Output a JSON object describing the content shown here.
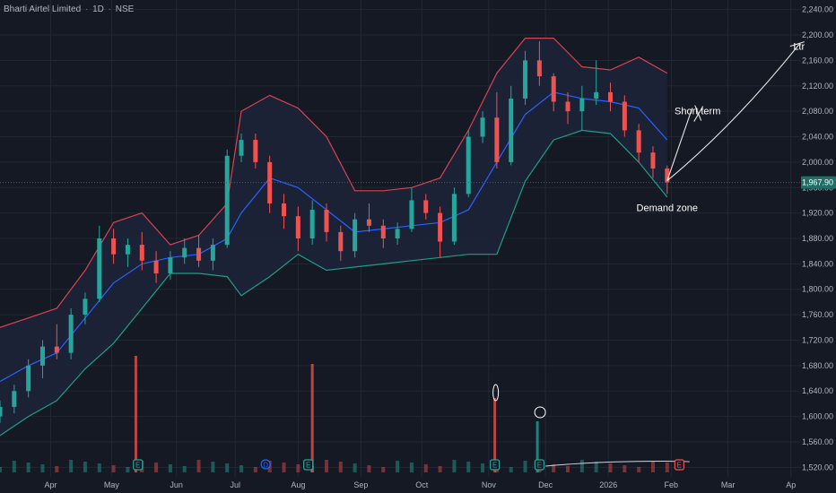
{
  "header": {
    "symbol_name": "Bharti Airtel Limited",
    "interval": "1D",
    "exchange": "NSE"
  },
  "price_tag": {
    "value": 1967.9,
    "label": "1,967.90",
    "color": "#1e6f66"
  },
  "colors": {
    "background": "#151924",
    "grid": "#222733",
    "up": "#26a69a",
    "down": "#ef5350",
    "bb_upper": "#d64450",
    "bb_lower": "#1f9e84",
    "bb_basis": "#2962ff",
    "bb_fill": "#1c2438"
  },
  "chart_data": {
    "type": "candlestick",
    "title": "Bharti Airtel Limited · 1D · NSE",
    "ylim": [
      1505,
      2255
    ],
    "yticks": [
      1520,
      1560,
      1600,
      1640,
      1680,
      1720,
      1760,
      1800,
      1840,
      1880,
      1920,
      1960,
      2000,
      2040,
      2080,
      2120,
      2160,
      2200,
      2240
    ],
    "ytick_labels": [
      "1,520.00",
      "1,560.00",
      "1,600.00",
      "1,640.00",
      "1,680.00",
      "1,720.00",
      "1,760.00",
      "1,800.00",
      "1,840.00",
      "1,880.00",
      "1,920.00",
      "1,960.00",
      "2,000.00",
      "2,040.00",
      "2,080.00",
      "2,120.00",
      "2,160.00",
      "2,200.00",
      "2,240.00"
    ],
    "xaxis": {
      "start": "2025-03-07",
      "end": "2026-04-06",
      "ticks": [
        {
          "date": "2025-04-01",
          "label": "Apr"
        },
        {
          "date": "2025-05-01",
          "label": "May"
        },
        {
          "date": "2025-06-02",
          "label": "Jun"
        },
        {
          "date": "2025-07-01",
          "label": "Jul"
        },
        {
          "date": "2025-08-01",
          "label": "Aug"
        },
        {
          "date": "2025-09-01",
          "label": "Sep"
        },
        {
          "date": "2025-10-01",
          "label": "Oct"
        },
        {
          "date": "2025-11-03",
          "label": "Nov"
        },
        {
          "date": "2025-12-01",
          "label": "Dec"
        },
        {
          "date": "2026-01-01",
          "label": "2026"
        },
        {
          "date": "2026-02-01",
          "label": "Feb"
        },
        {
          "date": "2026-03-01",
          "label": "Mar"
        },
        {
          "date": "2026-04-01",
          "label": "Ap"
        }
      ]
    },
    "series": [
      {
        "name": "Price",
        "kind": "ohlc",
        "points": [
          {
            "date": "2025-03-07",
            "o": 1600,
            "h": 1625,
            "l": 1590,
            "c": 1615
          },
          {
            "date": "2025-03-14",
            "o": 1615,
            "h": 1650,
            "l": 1605,
            "c": 1640
          },
          {
            "date": "2025-03-21",
            "o": 1640,
            "h": 1690,
            "l": 1630,
            "c": 1680
          },
          {
            "date": "2025-03-28",
            "o": 1680,
            "h": 1720,
            "l": 1660,
            "c": 1710
          },
          {
            "date": "2025-04-04",
            "o": 1710,
            "h": 1745,
            "l": 1690,
            "c": 1700
          },
          {
            "date": "2025-04-11",
            "o": 1700,
            "h": 1770,
            "l": 1690,
            "c": 1760
          },
          {
            "date": "2025-04-18",
            "o": 1760,
            "h": 1795,
            "l": 1745,
            "c": 1785
          },
          {
            "date": "2025-04-25",
            "o": 1785,
            "h": 1900,
            "l": 1780,
            "c": 1880
          },
          {
            "date": "2025-05-02",
            "o": 1880,
            "h": 1895,
            "l": 1840,
            "c": 1855
          },
          {
            "date": "2025-05-09",
            "o": 1855,
            "h": 1880,
            "l": 1835,
            "c": 1870
          },
          {
            "date": "2025-05-16",
            "o": 1870,
            "h": 1890,
            "l": 1830,
            "c": 1845
          },
          {
            "date": "2025-05-23",
            "o": 1845,
            "h": 1860,
            "l": 1810,
            "c": 1825
          },
          {
            "date": "2025-05-30",
            "o": 1825,
            "h": 1860,
            "l": 1815,
            "c": 1850
          },
          {
            "date": "2025-06-06",
            "o": 1850,
            "h": 1880,
            "l": 1840,
            "c": 1865
          },
          {
            "date": "2025-06-13",
            "o": 1865,
            "h": 1885,
            "l": 1835,
            "c": 1845
          },
          {
            "date": "2025-06-20",
            "o": 1845,
            "h": 1880,
            "l": 1830,
            "c": 1870
          },
          {
            "date": "2025-06-27",
            "o": 1870,
            "h": 2020,
            "l": 1865,
            "c": 2010
          },
          {
            "date": "2025-07-04",
            "o": 2010,
            "h": 2045,
            "l": 2000,
            "c": 2035
          },
          {
            "date": "2025-07-11",
            "o": 2035,
            "h": 2045,
            "l": 1990,
            "c": 2000
          },
          {
            "date": "2025-07-18",
            "o": 2000,
            "h": 2010,
            "l": 1920,
            "c": 1935
          },
          {
            "date": "2025-07-25",
            "o": 1935,
            "h": 1950,
            "l": 1895,
            "c": 1915
          },
          {
            "date": "2025-08-01",
            "o": 1915,
            "h": 1930,
            "l": 1860,
            "c": 1880
          },
          {
            "date": "2025-08-08",
            "o": 1880,
            "h": 1940,
            "l": 1870,
            "c": 1925
          },
          {
            "date": "2025-08-15",
            "o": 1925,
            "h": 1935,
            "l": 1875,
            "c": 1890
          },
          {
            "date": "2025-08-22",
            "o": 1890,
            "h": 1900,
            "l": 1845,
            "c": 1860
          },
          {
            "date": "2025-08-29",
            "o": 1860,
            "h": 1920,
            "l": 1850,
            "c": 1910
          },
          {
            "date": "2025-09-05",
            "o": 1910,
            "h": 1935,
            "l": 1890,
            "c": 1900
          },
          {
            "date": "2025-09-12",
            "o": 1900,
            "h": 1910,
            "l": 1865,
            "c": 1880
          },
          {
            "date": "2025-09-19",
            "o": 1880,
            "h": 1905,
            "l": 1870,
            "c": 1895
          },
          {
            "date": "2025-09-26",
            "o": 1895,
            "h": 1960,
            "l": 1890,
            "c": 1940
          },
          {
            "date": "2025-10-03",
            "o": 1940,
            "h": 1950,
            "l": 1910,
            "c": 1920
          },
          {
            "date": "2025-10-10",
            "o": 1920,
            "h": 1930,
            "l": 1850,
            "c": 1875
          },
          {
            "date": "2025-10-17",
            "o": 1875,
            "h": 1960,
            "l": 1870,
            "c": 1950
          },
          {
            "date": "2025-10-24",
            "o": 1950,
            "h": 2050,
            "l": 1945,
            "c": 2040
          },
          {
            "date": "2025-10-31",
            "o": 2040,
            "h": 2080,
            "l": 2030,
            "c": 2070
          },
          {
            "date": "2025-11-07",
            "o": 2070,
            "h": 2110,
            "l": 1990,
            "c": 2000
          },
          {
            "date": "2025-11-14",
            "o": 2000,
            "h": 2120,
            "l": 1995,
            "c": 2100
          },
          {
            "date": "2025-11-21",
            "o": 2100,
            "h": 2175,
            "l": 2090,
            "c": 2160
          },
          {
            "date": "2025-11-28",
            "o": 2160,
            "h": 2190,
            "l": 2120,
            "c": 2135
          },
          {
            "date": "2025-12-05",
            "o": 2135,
            "h": 2140,
            "l": 2080,
            "c": 2095
          },
          {
            "date": "2025-12-12",
            "o": 2095,
            "h": 2110,
            "l": 2060,
            "c": 2080
          },
          {
            "date": "2025-12-19",
            "o": 2080,
            "h": 2120,
            "l": 2050,
            "c": 2100
          },
          {
            "date": "2025-12-26",
            "o": 2100,
            "h": 2160,
            "l": 2090,
            "c": 2110
          },
          {
            "date": "2026-01-02",
            "o": 2110,
            "h": 2125,
            "l": 2080,
            "c": 2095
          },
          {
            "date": "2026-01-09",
            "o": 2095,
            "h": 2105,
            "l": 2040,
            "c": 2050
          },
          {
            "date": "2026-01-16",
            "o": 2050,
            "h": 2060,
            "l": 2000,
            "c": 2015
          },
          {
            "date": "2026-01-23",
            "o": 2015,
            "h": 2025,
            "l": 1975,
            "c": 1990
          },
          {
            "date": "2026-01-30",
            "o": 1990,
            "h": 1995,
            "l": 1950,
            "c": 1968
          }
        ]
      },
      {
        "name": "Upper band",
        "points": [
          [
            "2025-03-07",
            1740
          ],
          [
            "2025-03-21",
            1755
          ],
          [
            "2025-04-04",
            1770
          ],
          [
            "2025-04-18",
            1830
          ],
          [
            "2025-05-02",
            1905
          ],
          [
            "2025-05-16",
            1920
          ],
          [
            "2025-05-30",
            1870
          ],
          [
            "2025-06-13",
            1885
          ],
          [
            "2025-06-27",
            1935
          ],
          [
            "2025-07-04",
            2080
          ],
          [
            "2025-07-18",
            2105
          ],
          [
            "2025-08-01",
            2085
          ],
          [
            "2025-08-15",
            2040
          ],
          [
            "2025-08-29",
            1955
          ],
          [
            "2025-09-12",
            1955
          ],
          [
            "2025-09-26",
            1960
          ],
          [
            "2025-10-10",
            1975
          ],
          [
            "2025-10-24",
            2050
          ],
          [
            "2025-11-07",
            2140
          ],
          [
            "2025-11-21",
            2195
          ],
          [
            "2025-12-05",
            2195
          ],
          [
            "2025-12-19",
            2150
          ],
          [
            "2026-01-02",
            2145
          ],
          [
            "2026-01-16",
            2165
          ],
          [
            "2026-01-30",
            2140
          ]
        ]
      },
      {
        "name": "Basis",
        "points": [
          [
            "2025-03-07",
            1655
          ],
          [
            "2025-03-21",
            1680
          ],
          [
            "2025-04-04",
            1700
          ],
          [
            "2025-04-18",
            1755
          ],
          [
            "2025-05-02",
            1810
          ],
          [
            "2025-05-16",
            1840
          ],
          [
            "2025-05-30",
            1850
          ],
          [
            "2025-06-13",
            1855
          ],
          [
            "2025-06-27",
            1880
          ],
          [
            "2025-07-04",
            1920
          ],
          [
            "2025-07-18",
            1975
          ],
          [
            "2025-08-01",
            1960
          ],
          [
            "2025-08-15",
            1925
          ],
          [
            "2025-08-29",
            1890
          ],
          [
            "2025-09-12",
            1895
          ],
          [
            "2025-09-26",
            1900
          ],
          [
            "2025-10-10",
            1905
          ],
          [
            "2025-10-24",
            1925
          ],
          [
            "2025-11-07",
            2000
          ],
          [
            "2025-11-21",
            2075
          ],
          [
            "2025-12-05",
            2110
          ],
          [
            "2025-12-19",
            2100
          ],
          [
            "2026-01-02",
            2095
          ],
          [
            "2026-01-16",
            2085
          ],
          [
            "2026-01-30",
            2035
          ]
        ]
      },
      {
        "name": "Lower band",
        "points": [
          [
            "2025-03-07",
            1570
          ],
          [
            "2025-03-21",
            1600
          ],
          [
            "2025-04-04",
            1625
          ],
          [
            "2025-04-18",
            1675
          ],
          [
            "2025-05-02",
            1715
          ],
          [
            "2025-05-16",
            1770
          ],
          [
            "2025-05-30",
            1825
          ],
          [
            "2025-06-13",
            1825
          ],
          [
            "2025-06-27",
            1820
          ],
          [
            "2025-07-04",
            1790
          ],
          [
            "2025-07-18",
            1820
          ],
          [
            "2025-08-01",
            1855
          ],
          [
            "2025-08-15",
            1830
          ],
          [
            "2025-08-29",
            1835
          ],
          [
            "2025-09-12",
            1840
          ],
          [
            "2025-09-26",
            1845
          ],
          [
            "2025-10-10",
            1850
          ],
          [
            "2025-10-24",
            1855
          ],
          [
            "2025-11-07",
            1855
          ],
          [
            "2025-11-21",
            1970
          ],
          [
            "2025-12-05",
            2035
          ],
          [
            "2025-12-19",
            2050
          ],
          [
            "2026-01-02",
            2045
          ],
          [
            "2026-01-16",
            2000
          ],
          [
            "2026-01-30",
            1945
          ]
        ]
      }
    ],
    "volume_spikes": [
      {
        "date": "2025-05-13",
        "color": "#ef5350"
      },
      {
        "date": "2025-08-08",
        "color": "#ef5350"
      },
      {
        "date": "2025-11-06",
        "color": "#ef5350"
      },
      {
        "date": "2025-11-27",
        "color": "#26a69a"
      }
    ],
    "event_markers": [
      {
        "date": "2025-05-14",
        "label": "E"
      },
      {
        "date": "2025-07-16",
        "label": "D"
      },
      {
        "date": "2025-08-06",
        "label": "E"
      },
      {
        "date": "2025-11-06",
        "label": "E"
      },
      {
        "date": "2025-11-28",
        "label": "E"
      },
      {
        "date": "2026-02-05",
        "label": "E"
      }
    ],
    "annotations": [
      {
        "text": "Demand zone",
        "date": "2026-01-30",
        "value": 1923
      },
      {
        "text": "Short term",
        "date": "2026-02-14",
        "value": 2075
      },
      {
        "text": "Ltr",
        "date": "2026-04-05",
        "value": 2177
      }
    ],
    "grid": true,
    "price_line": 1967.9
  }
}
